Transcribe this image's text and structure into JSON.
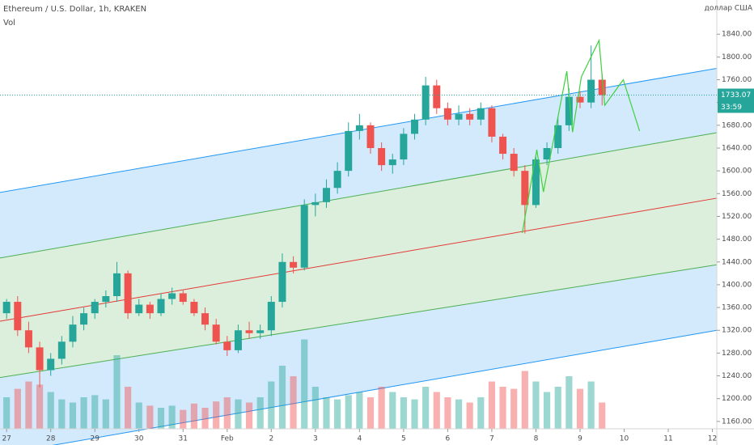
{
  "chart_data": {
    "type": "candlestick",
    "title": "Ethereum / U.S. Dollar, 1h, KRAKEN",
    "volume_label": "Vol",
    "currency": "доллар США",
    "x": [
      27,
      27.25,
      27.5,
      27.75,
      28,
      28.25,
      28.5,
      28.75,
      29,
      29.25,
      29.5,
      29.75,
      30,
      30.25,
      30.5,
      30.75,
      31,
      31.25,
      31.5,
      31.75,
      32,
      32.25,
      32.5,
      32.75,
      33,
      33.25,
      33.5,
      33.75,
      34,
      34.25,
      34.5,
      34.75,
      35,
      35.25,
      35.5,
      35.75,
      36,
      36.25,
      36.5,
      36.75,
      37,
      37.25,
      37.5,
      37.75,
      38,
      38.25,
      38.5,
      38.75,
      39,
      39.25,
      39.5,
      39.75,
      40,
      40.25,
      40.5
    ],
    "open": [
      1350,
      1370,
      1320,
      1290,
      1250,
      1270,
      1300,
      1330,
      1350,
      1370,
      1380,
      1420,
      1350,
      1365,
      1350,
      1375,
      1385,
      1370,
      1350,
      1330,
      1300,
      1285,
      1320,
      1315,
      1320,
      1370,
      1440,
      1430,
      1540,
      1545,
      1570,
      1600,
      1670,
      1680,
      1640,
      1610,
      1620,
      1665,
      1690,
      1750,
      1710,
      1690,
      1700,
      1690,
      1710,
      1660,
      1630,
      1600,
      1540,
      1620,
      1640,
      1680,
      1730,
      1720,
      1760
    ],
    "high": [
      1375,
      1380,
      1335,
      1300,
      1280,
      1310,
      1345,
      1360,
      1375,
      1390,
      1440,
      1425,
      1375,
      1370,
      1385,
      1395,
      1390,
      1375,
      1360,
      1340,
      1310,
      1330,
      1335,
      1330,
      1380,
      1455,
      1450,
      1550,
      1560,
      1585,
      1615,
      1685,
      1700,
      1685,
      1650,
      1630,
      1675,
      1700,
      1765,
      1760,
      1720,
      1715,
      1710,
      1720,
      1715,
      1665,
      1640,
      1610,
      1625,
      1650,
      1695,
      1745,
      1740,
      1820,
      1770
    ],
    "low": [
      1340,
      1310,
      1280,
      1220,
      1240,
      1260,
      1290,
      1320,
      1340,
      1360,
      1370,
      1340,
      1345,
      1340,
      1345,
      1365,
      1365,
      1345,
      1320,
      1295,
      1275,
      1280,
      1305,
      1305,
      1310,
      1360,
      1420,
      1425,
      1520,
      1535,
      1560,
      1590,
      1655,
      1630,
      1600,
      1595,
      1610,
      1655,
      1680,
      1700,
      1680,
      1680,
      1680,
      1680,
      1650,
      1620,
      1590,
      1490,
      1535,
      1610,
      1630,
      1670,
      1710,
      1710,
      1715
    ],
    "close": [
      1370,
      1320,
      1290,
      1250,
      1270,
      1300,
      1330,
      1350,
      1370,
      1380,
      1420,
      1350,
      1365,
      1350,
      1375,
      1385,
      1370,
      1350,
      1330,
      1300,
      1285,
      1320,
      1315,
      1320,
      1370,
      1440,
      1430,
      1540,
      1545,
      1570,
      1600,
      1670,
      1680,
      1640,
      1610,
      1620,
      1665,
      1690,
      1750,
      1710,
      1690,
      1700,
      1690,
      1710,
      1660,
      1630,
      1600,
      1540,
      1620,
      1640,
      1680,
      1730,
      1720,
      1760,
      1733
    ],
    "volume": [
      30,
      38,
      45,
      42,
      35,
      28,
      25,
      30,
      32,
      28,
      70,
      40,
      25,
      22,
      20,
      22,
      18,
      24,
      20,
      26,
      30,
      28,
      25,
      30,
      45,
      60,
      50,
      85,
      40,
      30,
      28,
      32,
      35,
      30,
      40,
      35,
      30,
      28,
      40,
      35,
      30,
      28,
      25,
      30,
      45,
      40,
      38,
      55,
      45,
      35,
      40,
      50,
      38,
      45,
      25
    ],
    "vlim": [
      0,
      100
    ],
    "up_color": "#26a69a",
    "down_color": "#ef5350",
    "xlim": [
      26.85,
      43.1
    ],
    "ylim": [
      1147,
      1900
    ],
    "xticks": [
      {
        "value": 27,
        "label": "27"
      },
      {
        "value": 28,
        "label": "28"
      },
      {
        "value": 29,
        "label": "29"
      },
      {
        "value": 30,
        "label": "30"
      },
      {
        "value": 31,
        "label": "31"
      },
      {
        "value": 32,
        "label": "Feb"
      },
      {
        "value": 33,
        "label": "2"
      },
      {
        "value": 34,
        "label": "3"
      },
      {
        "value": 35,
        "label": "4"
      },
      {
        "value": 36,
        "label": "5"
      },
      {
        "value": 37,
        "label": "6"
      },
      {
        "value": 38,
        "label": "7"
      },
      {
        "value": 39,
        "label": "8"
      },
      {
        "value": 40,
        "label": "9"
      },
      {
        "value": 41,
        "label": "10"
      },
      {
        "value": 42,
        "label": "11"
      },
      {
        "value": 43,
        "label": "12"
      }
    ],
    "yticks": [
      {
        "value": 1160,
        "label": "1160.00"
      },
      {
        "value": 1200,
        "label": "1200.00"
      },
      {
        "value": 1240,
        "label": "1240.00"
      },
      {
        "value": 1280,
        "label": "1280.00"
      },
      {
        "value": 1320,
        "label": "1320.00"
      },
      {
        "value": 1360,
        "label": "1360.00"
      },
      {
        "value": 1400,
        "label": "1400.00"
      },
      {
        "value": 1440,
        "label": "1440.00"
      },
      {
        "value": 1480,
        "label": "1480.00"
      },
      {
        "value": 1520,
        "label": "1520.00"
      },
      {
        "value": 1560,
        "label": "1560.00"
      },
      {
        "value": 1600,
        "label": "1600.00"
      },
      {
        "value": 1640,
        "label": "1640.00"
      },
      {
        "value": 1680,
        "label": "1680.00"
      },
      {
        "value": 1720,
        "label": "1720.00"
      },
      {
        "value": 1760,
        "label": "1760.00"
      },
      {
        "value": 1800,
        "label": "1800.00"
      },
      {
        "value": 1840,
        "label": "1840.00"
      }
    ],
    "last_price": 1733.07,
    "countdown": "33:59",
    "channel": [
      {
        "start": [
          26.85,
          1562
        ],
        "end": [
          43.1,
          1780
        ],
        "color": "#2196f3"
      },
      {
        "start": [
          26.85,
          1447
        ],
        "end": [
          43.1,
          1667
        ],
        "color": "#4caf50"
      },
      {
        "start": [
          26.85,
          1336
        ],
        "end": [
          43.1,
          1552
        ],
        "color": "#e53935"
      },
      {
        "start": [
          26.85,
          1237
        ],
        "end": [
          43.1,
          1435
        ],
        "color": "#4caf50"
      },
      {
        "start": [
          26.85,
          1102
        ],
        "end": [
          43.1,
          1320
        ],
        "color": "#2196f3"
      }
    ],
    "band_colors": [
      "#2196f3",
      "#4caf50",
      "#4caf50",
      "#2196f3"
    ],
    "projection": {
      "color": "#3ed13e",
      "x": [
        38.69,
        39.02,
        39.17,
        39.7,
        39.83,
        40.03,
        40.43,
        40.56,
        40.98,
        41.35
      ],
      "y": [
        1491,
        1637,
        1563,
        1775,
        1668,
        1765,
        1829,
        1715,
        1760,
        1670
      ]
    }
  }
}
